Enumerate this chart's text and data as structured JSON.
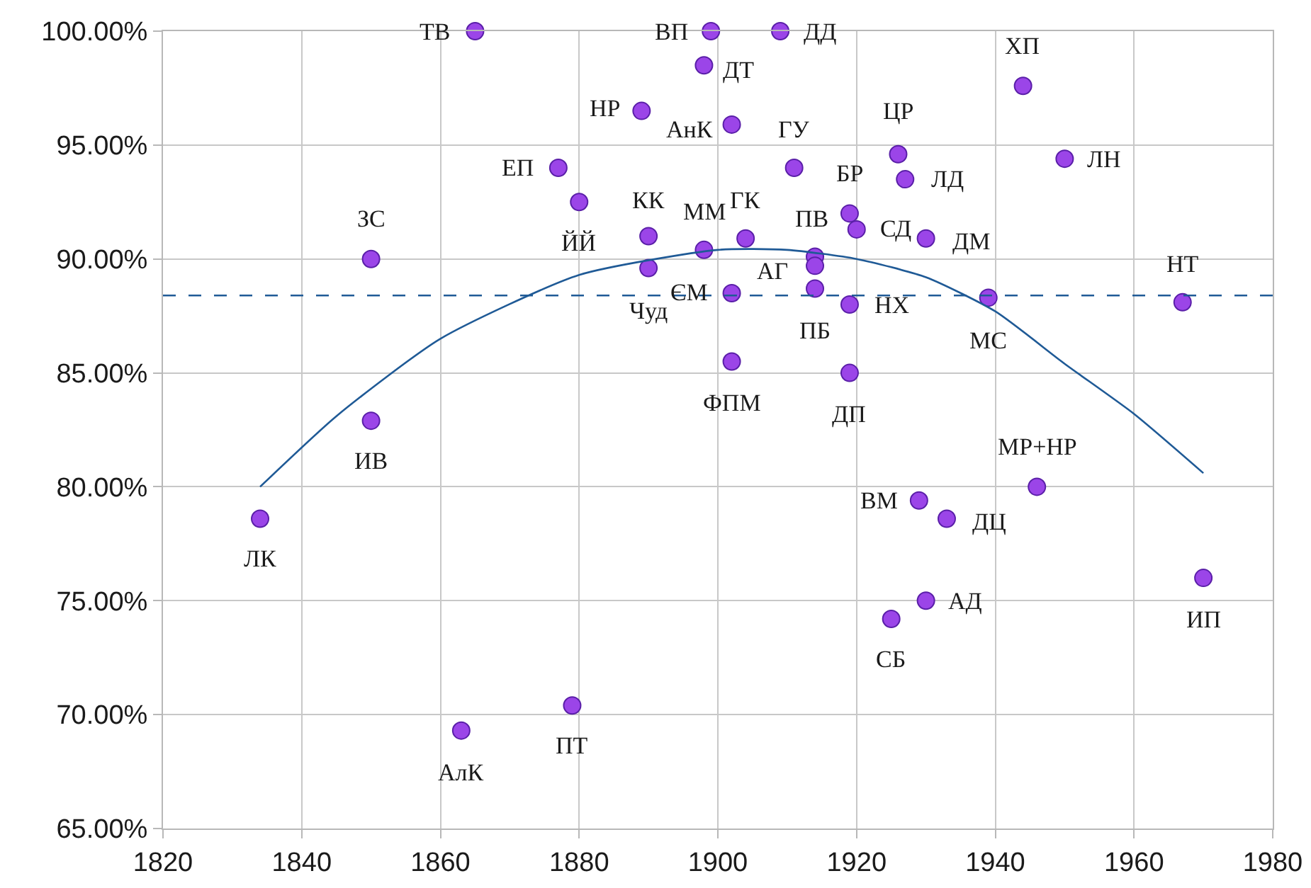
{
  "chart_data": {
    "type": "scatter",
    "xlim": [
      1820,
      1980
    ],
    "xticks": [
      1820,
      1840,
      1860,
      1880,
      1900,
      1920,
      1940,
      1960,
      1980
    ],
    "ylim": [
      65,
      100
    ],
    "yticks": [
      {
        "value": 65,
        "label": "65.00%"
      },
      {
        "value": 70,
        "label": "70.00%"
      },
      {
        "value": 75,
        "label": "75.00%"
      },
      {
        "value": 80,
        "label": "80.00%"
      },
      {
        "value": 85,
        "label": "85.00%"
      },
      {
        "value": 90,
        "label": "90.00%"
      },
      {
        "value": 95,
        "label": "95.00%"
      },
      {
        "value": 100,
        "label": "100.00%"
      }
    ],
    "grid": true,
    "legend": false,
    "series": [
      {
        "marker": "circle",
        "color": "#9b45e8",
        "x": [
          1865,
          1899,
          1909,
          1898,
          1889,
          1902,
          1877,
          1880,
          1890,
          1898,
          1890,
          1902,
          1902,
          1904,
          1911,
          1926,
          1927,
          1919,
          1914,
          1920,
          1930,
          1914,
          1914,
          1919,
          1919,
          1944,
          1950,
          1939,
          1967,
          1850,
          1850,
          1834,
          1863,
          1879,
          1946,
          1929,
          1933,
          1930,
          1925,
          1970
        ],
        "values": [
          100,
          100,
          100,
          98.5,
          96.5,
          95.9,
          94.0,
          92.5,
          91.0,
          90.4,
          89.6,
          88.5,
          85.5,
          90.9,
          94.0,
          94.6,
          93.5,
          92.0,
          90.1,
          91.3,
          90.9,
          89.7,
          88.7,
          88.0,
          85.0,
          97.6,
          94.4,
          88.3,
          88.1,
          90.0,
          82.9,
          78.6,
          69.3,
          70.4,
          80.0,
          79.4,
          78.6,
          75.0,
          74.2,
          76.0
        ]
      },
      {
        "type": "line",
        "marker": "none",
        "color": "#1f5a96",
        "line_style": "solid",
        "x": [
          1834,
          1845,
          1860,
          1880,
          1900,
          1910,
          1920,
          1930,
          1940,
          1950,
          1960,
          1970
        ],
        "values": [
          80.0,
          83.1,
          86.5,
          89.3,
          90.4,
          90.4,
          90.0,
          89.2,
          87.7,
          85.4,
          83.2,
          80.6
        ]
      }
    ],
    "ref_lines": [
      {
        "axis": "y",
        "value": 88.4,
        "color": "#1f5a96",
        "line_style": "dashed"
      }
    ],
    "annotations": [
      {
        "text": "ТВ",
        "x": 1865,
        "y": 100
      },
      {
        "text": "ВП",
        "x": 1899,
        "y": 100
      },
      {
        "text": "ДД",
        "x": 1909,
        "y": 100
      },
      {
        "text": "ДТ",
        "x": 1898,
        "y": 98.5
      },
      {
        "text": "НР",
        "x": 1889,
        "y": 96.5
      },
      {
        "text": "АнК",
        "x": 1902,
        "y": 95.9
      },
      {
        "text": "ЕП",
        "x": 1877,
        "y": 94.0
      },
      {
        "text": "ЙЙ",
        "x": 1880,
        "y": 92.5
      },
      {
        "text": "КК",
        "x": 1890,
        "y": 91.0
      },
      {
        "text": "ММ",
        "x": 1898,
        "y": 90.4
      },
      {
        "text": "Чуд",
        "x": 1890,
        "y": 89.6
      },
      {
        "text": "ЄМ",
        "x": 1902,
        "y": 88.5
      },
      {
        "text": "ФПМ",
        "x": 1902,
        "y": 85.5
      },
      {
        "text": "ГК",
        "x": 1904,
        "y": 90.9
      },
      {
        "text": "ГУ",
        "x": 1911,
        "y": 94.0
      },
      {
        "text": "ЦР",
        "x": 1926,
        "y": 94.6
      },
      {
        "text": "ЛД",
        "x": 1927,
        "y": 93.5
      },
      {
        "text": "БР",
        "x": 1919,
        "y": 92.0
      },
      {
        "text": "ПВ",
        "x": 1914,
        "y": 90.1
      },
      {
        "text": "СД",
        "x": 1920,
        "y": 91.3
      },
      {
        "text": "ДМ",
        "x": 1930,
        "y": 90.9
      },
      {
        "text": "АГ",
        "x": 1914,
        "y": 89.7
      },
      {
        "text": "ПБ",
        "x": 1914,
        "y": 88.7
      },
      {
        "text": "НХ",
        "x": 1919,
        "y": 88.0
      },
      {
        "text": "ДП",
        "x": 1919,
        "y": 85.0
      },
      {
        "text": "ХП",
        "x": 1944,
        "y": 97.6
      },
      {
        "text": "ЛН",
        "x": 1950,
        "y": 94.4
      },
      {
        "text": "МС",
        "x": 1939,
        "y": 88.3
      },
      {
        "text": "НТ",
        "x": 1967,
        "y": 88.1
      },
      {
        "text": "ЗС",
        "x": 1850,
        "y": 90.0
      },
      {
        "text": "ИВ",
        "x": 1850,
        "y": 82.9
      },
      {
        "text": "ЛК",
        "x": 1834,
        "y": 78.6
      },
      {
        "text": "АлК",
        "x": 1863,
        "y": 69.3
      },
      {
        "text": "ПТ",
        "x": 1879,
        "y": 70.4
      },
      {
        "text": "МР+НР",
        "x": 1946,
        "y": 80.0
      },
      {
        "text": "ВМ",
        "x": 1929,
        "y": 79.4
      },
      {
        "text": "ДЦ",
        "x": 1933,
        "y": 78.6
      },
      {
        "text": "АД",
        "x": 1930,
        "y": 75.0
      },
      {
        "text": "СБ",
        "x": 1925,
        "y": 74.2
      },
      {
        "text": "ИП",
        "x": 1970,
        "y": 76.0
      }
    ]
  }
}
